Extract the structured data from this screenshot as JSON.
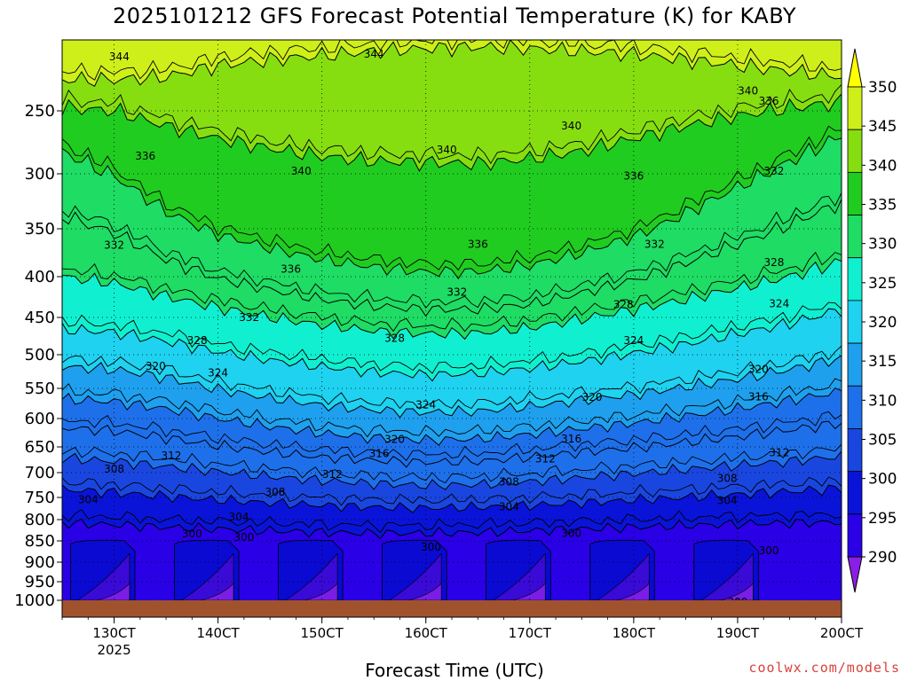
{
  "chart_data": {
    "type": "heatmap",
    "title": "2025101212 GFS Forecast Potential Temperature (K) for KABY",
    "xlabel": "Forecast Time (UTC)",
    "ylabel": "",
    "x_ticks": [
      "130CT",
      "140CT",
      "150CT",
      "160CT",
      "170CT",
      "180CT",
      "190CT",
      "200CT"
    ],
    "x_year_label": "2025",
    "y_ticks": [
      250,
      300,
      350,
      400,
      450,
      500,
      550,
      600,
      650,
      700,
      750,
      800,
      850,
      900,
      950,
      1000
    ],
    "y_range": [
      200,
      1025
    ],
    "x_range_days": [
      12.5,
      20.0
    ],
    "colorbar_ticks": [
      290,
      295,
      300,
      305,
      310,
      315,
      320,
      325,
      330,
      335,
      340,
      345,
      350
    ],
    "colorbar_colors": [
      "#8a1ee6",
      "#2a00e6",
      "#0a14d8",
      "#1a46e0",
      "#1e70ea",
      "#1ea0ee",
      "#1ed2f0",
      "#10f0d0",
      "#1edc64",
      "#20cc20",
      "#86de10",
      "#cfef1a",
      "#ffff00"
    ],
    "contour_interval": 4,
    "contours": [
      {
        "level": 344,
        "profile": [
          228,
          228,
          226,
          218,
          214,
          211,
          208,
          206,
          205,
          206,
          208,
          210,
          214,
          218,
          222,
          226
        ]
      },
      {
        "level": 340,
        "profile": [
          248,
          250,
          262,
          272,
          280,
          286,
          290,
          291,
          292,
          288,
          282,
          272,
          262,
          254,
          248,
          244
        ]
      },
      {
        "level": 336,
        "profile": [
          282,
          302,
          334,
          356,
          370,
          382,
          390,
          395,
          395,
          388,
          375,
          358,
          336,
          312,
          290,
          270
        ]
      },
      {
        "level": 332,
        "profile": [
          338,
          354,
          382,
          402,
          416,
          428,
          436,
          440,
          440,
          434,
          420,
          404,
          386,
          366,
          346,
          326
        ]
      },
      {
        "level": 328,
        "profile": [
          400,
          408,
          424,
          438,
          450,
          460,
          468,
          472,
          471,
          464,
          452,
          440,
          428,
          414,
          400,
          384
        ]
      },
      {
        "level": 324,
        "profile": [
          466,
          470,
          482,
          496,
          508,
          518,
          526,
          530,
          528,
          520,
          510,
          498,
          486,
          472,
          458,
          440
        ]
      },
      {
        "level": 320,
        "profile": [
          518,
          522,
          534,
          552,
          566,
          578,
          586,
          590,
          588,
          580,
          570,
          560,
          548,
          536,
          522,
          505
        ]
      },
      {
        "level": 316,
        "profile": [
          568,
          572,
          584,
          600,
          614,
          626,
          634,
          638,
          636,
          628,
          618,
          608,
          596,
          584,
          570,
          555
        ]
      },
      {
        "level": 312,
        "profile": [
          616,
          622,
          634,
          648,
          660,
          670,
          676,
          680,
          678,
          670,
          660,
          652,
          642,
          632,
          620,
          608
        ]
      },
      {
        "level": 308,
        "profile": [
          672,
          678,
          688,
          698,
          708,
          716,
          722,
          726,
          724,
          718,
          710,
          702,
          694,
          686,
          678,
          668
        ]
      },
      {
        "level": 304,
        "profile": [
          734,
          740,
          748,
          756,
          762,
          768,
          772,
          774,
          772,
          768,
          762,
          756,
          750,
          744,
          738,
          732
        ]
      },
      {
        "level": 300,
        "profile": [
          808,
          812,
          818,
          822,
          826,
          830,
          832,
          832,
          830,
          826,
          822,
          818,
          814,
          810,
          808,
          806
        ]
      }
    ],
    "contour_labels": [
      {
        "text": "344",
        "x": 13.05,
        "y": 212
      },
      {
        "text": "344",
        "x": 15.5,
        "y": 210
      },
      {
        "text": "340",
        "x": 19.1,
        "y": 236
      },
      {
        "text": "336",
        "x": 19.3,
        "y": 243
      },
      {
        "text": "340",
        "x": 17.4,
        "y": 262
      },
      {
        "text": "340",
        "x": 16.2,
        "y": 281
      },
      {
        "text": "336",
        "x": 13.3,
        "y": 286
      },
      {
        "text": "340",
        "x": 14.8,
        "y": 298
      },
      {
        "text": "336",
        "x": 18.0,
        "y": 302
      },
      {
        "text": "332",
        "x": 19.35,
        "y": 298
      },
      {
        "text": "332",
        "x": 13.0,
        "y": 367
      },
      {
        "text": "336",
        "x": 16.5,
        "y": 366
      },
      {
        "text": "332",
        "x": 18.2,
        "y": 366
      },
      {
        "text": "336",
        "x": 14.7,
        "y": 392
      },
      {
        "text": "328",
        "x": 19.35,
        "y": 385
      },
      {
        "text": "332",
        "x": 16.3,
        "y": 419
      },
      {
        "text": "324",
        "x": 19.4,
        "y": 433
      },
      {
        "text": "328",
        "x": 17.9,
        "y": 434
      },
      {
        "text": "332",
        "x": 14.3,
        "y": 450
      },
      {
        "text": "328",
        "x": 15.7,
        "y": 478
      },
      {
        "text": "324",
        "x": 18.0,
        "y": 481
      },
      {
        "text": "328",
        "x": 13.8,
        "y": 481
      },
      {
        "text": "320",
        "x": 13.4,
        "y": 517
      },
      {
        "text": "324",
        "x": 14.0,
        "y": 527
      },
      {
        "text": "320",
        "x": 19.2,
        "y": 522
      },
      {
        "text": "316",
        "x": 19.2,
        "y": 564
      },
      {
        "text": "320",
        "x": 17.6,
        "y": 565
      },
      {
        "text": "324",
        "x": 16.0,
        "y": 577
      },
      {
        "text": "320",
        "x": 15.7,
        "y": 637
      },
      {
        "text": "316",
        "x": 17.4,
        "y": 636
      },
      {
        "text": "316",
        "x": 15.55,
        "y": 663
      },
      {
        "text": "312",
        "x": 13.55,
        "y": 667
      },
      {
        "text": "312",
        "x": 17.15,
        "y": 673
      },
      {
        "text": "312",
        "x": 19.4,
        "y": 661
      },
      {
        "text": "312",
        "x": 15.1,
        "y": 704
      },
      {
        "text": "308",
        "x": 13.0,
        "y": 693
      },
      {
        "text": "308",
        "x": 16.8,
        "y": 719
      },
      {
        "text": "308",
        "x": 18.9,
        "y": 712
      },
      {
        "text": "308",
        "x": 14.55,
        "y": 739
      },
      {
        "text": "304",
        "x": 12.75,
        "y": 755
      },
      {
        "text": "304",
        "x": 16.8,
        "y": 771
      },
      {
        "text": "304",
        "x": 18.9,
        "y": 757
      },
      {
        "text": "304",
        "x": 14.2,
        "y": 794
      },
      {
        "text": "300",
        "x": 13.75,
        "y": 833
      },
      {
        "text": "300",
        "x": 14.25,
        "y": 842
      },
      {
        "text": "300",
        "x": 17.4,
        "y": 832
      },
      {
        "text": "300",
        "x": 19.3,
        "y": 873
      },
      {
        "text": "300",
        "x": 16.05,
        "y": 865
      },
      {
        "text": "300",
        "x": 19.0,
        "y": 1005
      }
    ]
  },
  "credit": "coolwx.com/models"
}
